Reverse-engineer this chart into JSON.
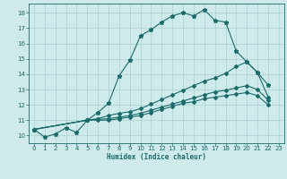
{
  "title": "",
  "xlabel": "Humidex (Indice chaleur)",
  "bg_color": "#ceeaea",
  "grid_color": "#aacfcf",
  "line_color": "#1a6b6b",
  "xlim": [
    -0.5,
    23.5
  ],
  "ylim": [
    9.5,
    18.6
  ],
  "xticks": [
    0,
    1,
    2,
    3,
    4,
    5,
    6,
    7,
    8,
    9,
    10,
    11,
    12,
    13,
    14,
    15,
    16,
    17,
    18,
    19,
    20,
    21,
    22,
    23
  ],
  "yticks": [
    10,
    11,
    12,
    13,
    14,
    15,
    16,
    17,
    18
  ],
  "line1_x": [
    0,
    1,
    2,
    3,
    4,
    5,
    6,
    7,
    8,
    9,
    10,
    11,
    12,
    13,
    14,
    15,
    16,
    17,
    18,
    19,
    20,
    21,
    22
  ],
  "line1_y": [
    10.4,
    9.9,
    10.1,
    10.5,
    10.2,
    11.0,
    11.5,
    12.1,
    13.9,
    14.9,
    16.5,
    16.9,
    17.4,
    17.8,
    18.0,
    17.8,
    18.2,
    17.5,
    17.4,
    15.5,
    14.8,
    14.1,
    13.3
  ],
  "line2_x": [
    0,
    5,
    6,
    7,
    8,
    9,
    10,
    11,
    12,
    13,
    14,
    15,
    16,
    17,
    18,
    19,
    20,
    21,
    22
  ],
  "line2_y": [
    10.4,
    11.0,
    11.1,
    11.3,
    11.45,
    11.55,
    11.75,
    12.05,
    12.35,
    12.65,
    12.95,
    13.25,
    13.55,
    13.75,
    14.05,
    14.5,
    14.8,
    14.1,
    12.5
  ],
  "line3_x": [
    0,
    5,
    6,
    7,
    8,
    9,
    10,
    11,
    12,
    13,
    14,
    15,
    16,
    17,
    18,
    19,
    20,
    21,
    22
  ],
  "line3_y": [
    10.4,
    11.0,
    11.05,
    11.1,
    11.2,
    11.3,
    11.45,
    11.65,
    11.85,
    12.05,
    12.25,
    12.45,
    12.65,
    12.85,
    12.95,
    13.1,
    13.25,
    13.0,
    12.3
  ],
  "line4_x": [
    0,
    5,
    6,
    7,
    8,
    9,
    10,
    11,
    12,
    13,
    14,
    15,
    16,
    17,
    18,
    19,
    20,
    21,
    22
  ],
  "line4_y": [
    10.4,
    11.0,
    11.0,
    11.0,
    11.1,
    11.2,
    11.3,
    11.5,
    11.7,
    11.9,
    12.1,
    12.2,
    12.4,
    12.5,
    12.6,
    12.7,
    12.8,
    12.6,
    12.0
  ]
}
